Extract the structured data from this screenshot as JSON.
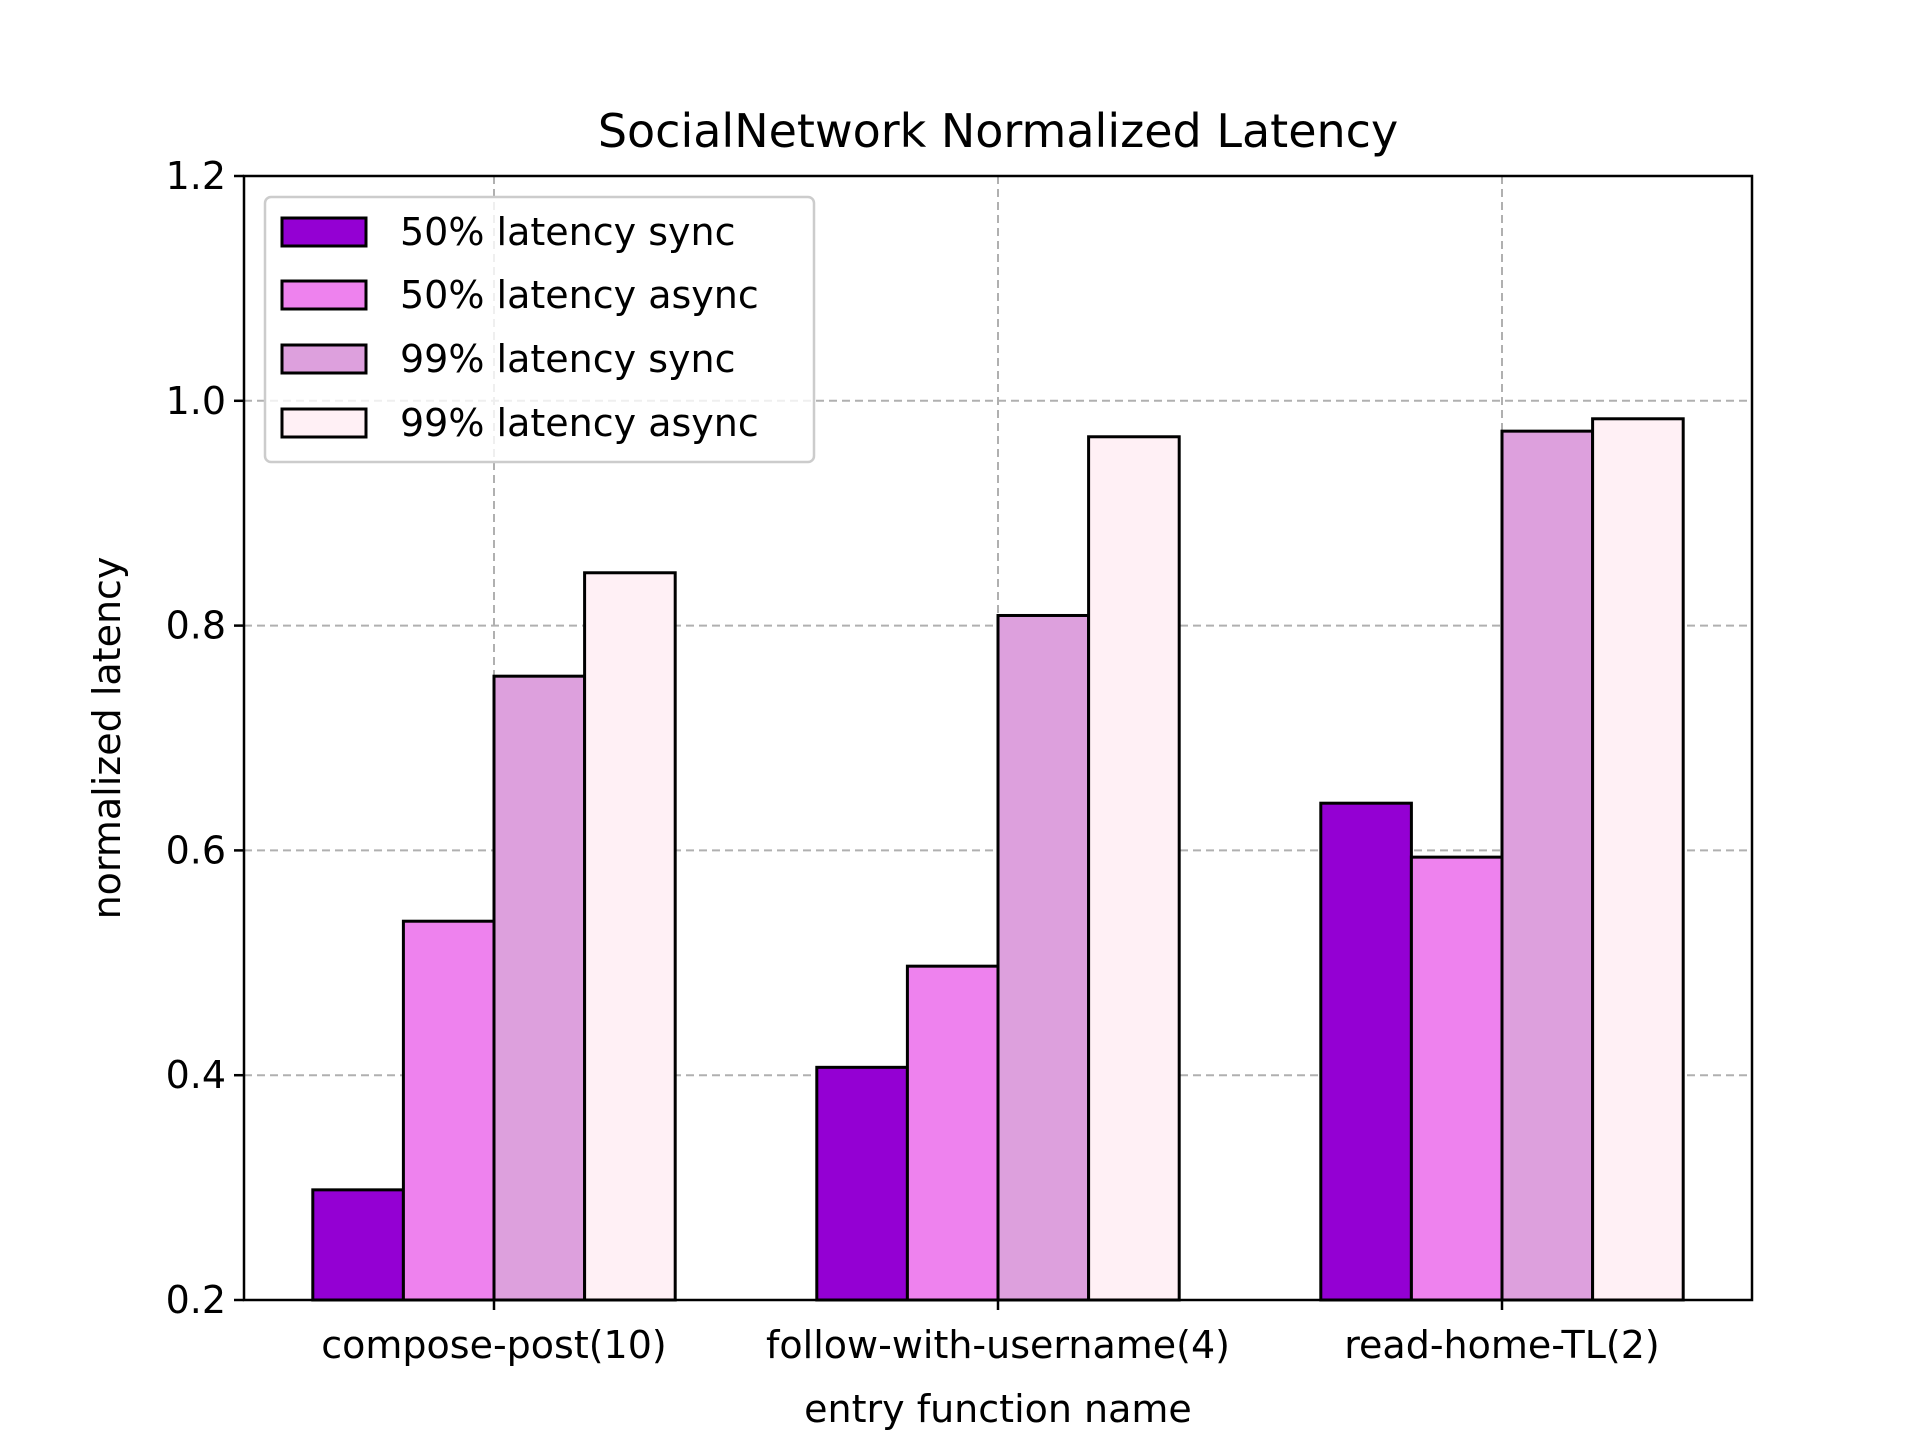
{
  "chart_data": {
    "type": "bar",
    "title": "SocialNetwork Normalized Latency",
    "xlabel": "entry function name",
    "ylabel": "normalized latency",
    "categories": [
      "compose-post(10)",
      "follow-with-username(4)",
      "read-home-TL(2)"
    ],
    "ylim": [
      0.2,
      1.2
    ],
    "yticks": [
      "0.2",
      "0.4",
      "0.6",
      "0.8",
      "1.0",
      "1.2"
    ],
    "grid": true,
    "legend_position": "top-left",
    "series": [
      {
        "name": "50% latency sync",
        "color": "#9400d3",
        "values": [
          0.298,
          0.407,
          0.642
        ]
      },
      {
        "name": "50% latency async",
        "color": "#ee82ee",
        "values": [
          0.537,
          0.497,
          0.594
        ]
      },
      {
        "name": "99% latency sync",
        "color": "#dda0dd",
        "values": [
          0.755,
          0.809,
          0.973
        ]
      },
      {
        "name": "99% latency async",
        "color": "#fff0f5",
        "values": [
          0.847,
          0.968,
          0.984
        ]
      }
    ]
  }
}
